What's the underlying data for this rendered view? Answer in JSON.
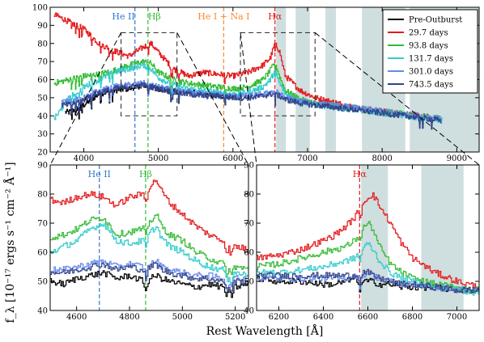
{
  "chart_data": {
    "type": "line",
    "ylabel": "f_λ [10⁻¹⁷ ergs s⁻¹ cm⁻² Å⁻¹]",
    "xlabel": "Rest Wavelength [Å]",
    "legend": {
      "placement": "top-right",
      "entries": [
        {
          "label": "Pre-Outburst",
          "color": "#000000"
        },
        {
          "label": "29.7 days",
          "color": "#e41a1c"
        },
        {
          "label": "93.8 days",
          "color": "#33bb33"
        },
        {
          "label": "131.7 days",
          "color": "#33cccc"
        },
        {
          "label": "301.0 days",
          "color": "#6688ee"
        },
        {
          "label": "743.5 days",
          "color": "#334488"
        }
      ]
    },
    "series_colors": [
      "#000000",
      "#e41a1c",
      "#33bb33",
      "#33cccc",
      "#6688ee",
      "#334488"
    ],
    "panels": [
      {
        "id": "top",
        "xlim": [
          3550,
          9300
        ],
        "ylim": [
          20,
          100
        ],
        "xticks": [
          4000,
          5000,
          6000,
          7000,
          8000,
          9000
        ],
        "yticks": [
          20,
          30,
          40,
          50,
          60,
          70,
          80,
          90,
          100
        ],
        "shaded": [
          [
            6580,
            6710
          ],
          [
            6840,
            7030
          ],
          [
            7240,
            7380
          ],
          [
            7730,
            8310
          ],
          [
            8370,
            9300
          ]
        ],
        "lines": [
          {
            "label": "He II",
            "x": 4686,
            "color": "#3377cc"
          },
          {
            "label": "Hβ",
            "x": 4861,
            "color": "#33bb33"
          },
          {
            "label": "He I + Na I",
            "x": 5876,
            "color": "#ff8833"
          },
          {
            "label": "Hα",
            "x": 6563,
            "color": "#e41a1c"
          }
        ],
        "zoom_boxes": [
          [
            4500,
            5250,
            40,
            86
          ],
          [
            6100,
            7100,
            40,
            86
          ]
        ],
        "anchors": {
          "x": [
            3600,
            3800,
            4000,
            4200,
            4400,
            4600,
            4800,
            4900,
            5000,
            5200,
            5400,
            5600,
            5800,
            6000,
            6200,
            6400,
            6500,
            6560,
            6620,
            6700,
            6900,
            7100,
            7300,
            7500,
            7700,
            7900,
            8100,
            8300,
            8500,
            8700,
            8800
          ],
          "series": [
            {
              "name": "Pre-Outburst",
              "start": 3750,
              "end": 6100,
              "values": [
                null,
                42,
                46,
                52,
                54,
                55,
                57,
                56,
                55,
                54,
                53,
                52,
                51,
                51,
                50,
                null,
                null,
                null,
                null,
                null,
                null,
                null,
                null,
                null,
                null,
                null,
                null,
                null,
                null,
                null,
                null
              ]
            },
            {
              "name": "29.7 days",
              "start": 3600,
              "end": 8800,
              "values": [
                96,
                92,
                88,
                80,
                76,
                73,
                78,
                80,
                75,
                66,
                62,
                64,
                63,
                62,
                64,
                68,
                72,
                80,
                76,
                62,
                54,
                50,
                48,
                46,
                44,
                43,
                42,
                41,
                40,
                39,
                38
              ]
            },
            {
              "name": "93.8 days",
              "start": 3600,
              "end": 8800,
              "values": [
                58,
                60,
                62,
                63,
                65,
                68,
                70,
                69,
                64,
                60,
                58,
                57,
                56,
                55,
                56,
                60,
                65,
                70,
                62,
                54,
                49,
                47,
                46,
                45,
                44,
                43,
                42,
                41,
                40,
                39,
                38
              ]
            },
            {
              "name": "131.7 days",
              "start": 3600,
              "end": 8800,
              "values": [
                38,
                50,
                56,
                60,
                64,
                66,
                68,
                66,
                61,
                57,
                55,
                54,
                53,
                52,
                53,
                56,
                60,
                65,
                58,
                52,
                48,
                46,
                45,
                44,
                43,
                42,
                41,
                40,
                39,
                38,
                38
              ]
            },
            {
              "name": "301.0 days",
              "start": 3700,
              "end": 8800,
              "values": [
                null,
                48,
                50,
                54,
                56,
                57,
                58,
                57,
                56,
                54,
                53,
                52,
                52,
                51,
                51,
                52,
                53,
                54,
                52,
                50,
                48,
                47,
                46,
                45,
                44,
                43,
                42,
                41,
                40,
                39,
                38
              ]
            },
            {
              "name": "743.5 days",
              "start": 3700,
              "end": 8800,
              "values": [
                null,
                46,
                49,
                53,
                55,
                56,
                57,
                56,
                55,
                53,
                52,
                51,
                51,
                50,
                50,
                51,
                52,
                52,
                51,
                49,
                47,
                46,
                45,
                44,
                43,
                42,
                41,
                40,
                39,
                38,
                37
              ]
            }
          ]
        }
      },
      {
        "id": "bottom-left",
        "xlim": [
          4500,
          5250
        ],
        "ylim": [
          40,
          90
        ],
        "xticks": [
          4600,
          4800,
          5000,
          5200
        ],
        "yticks": [
          40,
          50,
          60,
          70,
          80,
          90
        ],
        "shaded": [],
        "lines": [
          {
            "label": "He II",
            "x": 4686,
            "color": "#3377cc"
          },
          {
            "label": "Hβ",
            "x": 4861,
            "color": "#33bb33"
          }
        ],
        "anchors": {
          "x": [
            4500,
            4550,
            4600,
            4650,
            4700,
            4750,
            4800,
            4850,
            4880,
            4900,
            4920,
            4950,
            5000,
            5050,
            5100,
            5150,
            5200,
            5250
          ],
          "series": [
            {
              "name": "Pre-Outburst",
              "values": [
                50,
                49,
                51,
                52,
                53,
                51,
                52,
                50,
                51,
                52,
                51,
                50,
                49,
                48,
                49,
                48,
                48,
                49
              ]
            },
            {
              "name": "29.7 days",
              "values": [
                78,
                77,
                79,
                80,
                79,
                76,
                79,
                80,
                83,
                85,
                81,
                77,
                73,
                69,
                66,
                64,
                62,
                61
              ]
            },
            {
              "name": "93.8 days",
              "values": [
                65,
                66,
                68,
                71,
                72,
                66,
                67,
                68,
                71,
                73,
                69,
                66,
                64,
                60,
                58,
                56,
                55,
                54
              ]
            },
            {
              "name": "131.7 days",
              "values": [
                60,
                62,
                64,
                68,
                70,
                64,
                63,
                64,
                67,
                69,
                65,
                62,
                60,
                57,
                55,
                54,
                53,
                52
              ]
            },
            {
              "name": "301.0 days",
              "values": [
                54,
                54,
                55,
                56,
                57,
                55,
                56,
                55,
                56,
                57,
                55,
                54,
                53,
                52,
                52,
                51,
                51,
                51
              ]
            },
            {
              "name": "743.5 days",
              "values": [
                53,
                53,
                54,
                55,
                56,
                54,
                55,
                54,
                55,
                56,
                54,
                53,
                52,
                51,
                51,
                50,
                50,
                50
              ]
            }
          ]
        }
      },
      {
        "id": "bottom-right",
        "xlim": [
          6100,
          7100
        ],
        "ylim": [
          40,
          90
        ],
        "xticks": [
          6200,
          6400,
          6600,
          6800,
          7000
        ],
        "yticks": [
          40,
          50,
          60,
          70,
          80,
          90
        ],
        "shaded": [
          [
            6570,
            6690
          ],
          [
            6840,
            7030
          ]
        ],
        "lines": [
          {
            "label": "Hα",
            "x": 6563,
            "color": "#e41a1c"
          }
        ],
        "anchors": {
          "x": [
            6100,
            6200,
            6300,
            6400,
            6450,
            6500,
            6540,
            6570,
            6600,
            6620,
            6650,
            6700,
            6750,
            6800,
            6900,
            7000,
            7100
          ],
          "series": [
            {
              "name": "Pre-Outburst",
              "values": [
                51,
                50,
                50,
                49,
                49,
                50,
                51,
                50,
                50,
                50,
                49,
                49,
                48,
                48,
                48,
                47,
                47
              ]
            },
            {
              "name": "29.7 days",
              "values": [
                58,
                59,
                61,
                64,
                66,
                69,
                72,
                76,
                79,
                80,
                76,
                70,
                63,
                58,
                53,
                50,
                48
              ]
            },
            {
              "name": "93.8 days",
              "values": [
                55,
                56,
                58,
                60,
                61,
                62,
                64,
                68,
                70,
                68,
                62,
                56,
                53,
                51,
                49,
                48,
                47
              ]
            },
            {
              "name": "131.7 days",
              "values": [
                53,
                53,
                54,
                55,
                56,
                57,
                58,
                61,
                63,
                61,
                57,
                53,
                51,
                50,
                48,
                47,
                46
              ]
            },
            {
              "name": "301.0 days",
              "values": [
                51,
                51,
                51,
                51,
                51,
                51,
                52,
                52,
                53,
                52,
                51,
                50,
                49,
                49,
                48,
                47,
                47
              ]
            },
            {
              "name": "743.5 days",
              "values": [
                52,
                52,
                52,
                52,
                52,
                52,
                52,
                53,
                53,
                52,
                51,
                50,
                49,
                49,
                48,
                47,
                47
              ]
            }
          ]
        }
      }
    ]
  }
}
